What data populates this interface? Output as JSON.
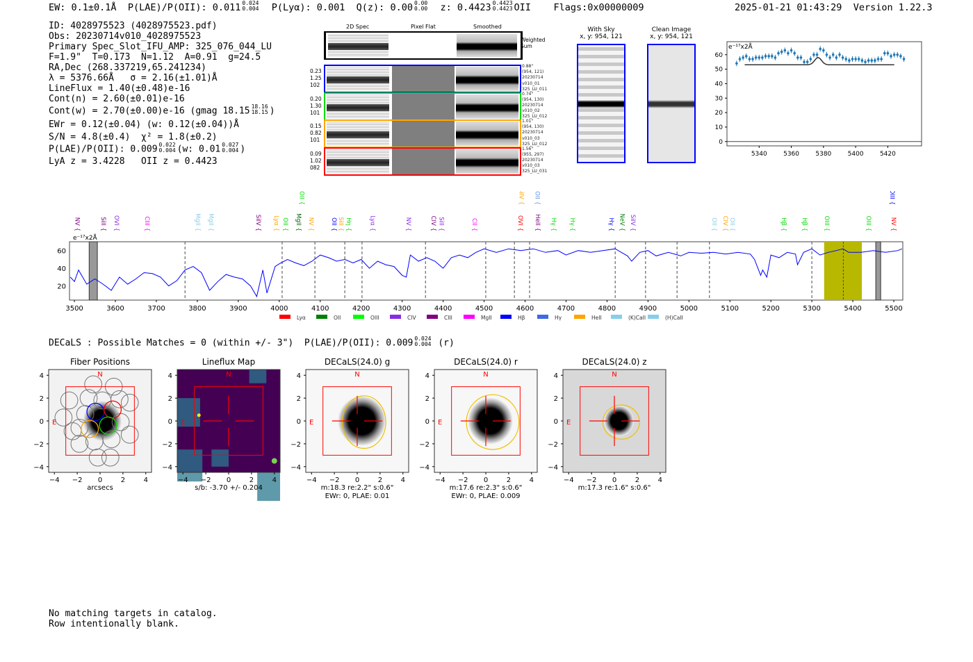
{
  "header": {
    "ew": "EW: 0.1±0.1Å",
    "plae": "P(LAE)/P(OII): 0.011",
    "plae_hi": "0.024",
    "plae_lo": "0.004",
    "plya": "P(Lyα): 0.001",
    "qz": "Q(z): 0.00",
    "qz_hi": "0.00",
    "qz_lo": "0.00",
    "z": "z: 0.4423",
    "z_hi": "0.4423",
    "z_lo": "0.4423",
    "z_line": "OII",
    "flags": "Flags:0x00000009",
    "timestamp": "2025-01-21 01:43:29",
    "version": "Version 1.22.3"
  },
  "info": {
    "id": "ID: 4028975523 (4028975523.pdf)",
    "obs": "Obs: 20230714v010_4028975523",
    "primary": "Primary Spec_Slot_IFU_AMP: 325_076_044_LU",
    "params": "F=1.9\"  T=0.173  N=1.12  A=0.91  g=24.5",
    "radec": "RA,Dec (268.337219,65.241234)",
    "lambda": "λ = 5376.66Å   σ = 2.16(±1.01)Å",
    "lineflux": "LineFlux = 1.40(±0.48)e-16",
    "contn": "Cont(n) = 2.60(±0.01)e-16",
    "contw": "Cont(w) = 2.70(±0.00)e-16 (gmag 18.15",
    "contw_hi": "18.16",
    "contw_lo": "18.15",
    "contw_tail": ")",
    "ewr": "EWr = 0.12(±0.04) (w: 0.12(±0.04))Å",
    "sn": "S/N = 4.8(±0.4)  χ² = 1.8(±0.2)",
    "plae": "P(LAE)/P(OII): 0.009",
    "plae_hi": "0.022",
    "plae_lo": "0.004",
    "plae_w": "(w: 0.01",
    "plae_w_hi": "0.027",
    "plae_w_lo": "0.004",
    "plae_tail": ")",
    "z": "LyA z = 3.4228   OII z = 0.4423"
  },
  "cutouts": {
    "col_2d": "2D Spec",
    "col_flat": "Pixel Flat",
    "col_smooth": "Smoothed",
    "weighted_sum": "Weighted\nSum",
    "rows": [
      {
        "color": "#0000ff",
        "left": [
          "0.23",
          "1.25",
          "102"
        ],
        "right": [
          "0.88\"",
          "(954, 121)",
          "20230714",
          "v010_01",
          "325_LU_011"
        ]
      },
      {
        "color": "#00dd00",
        "left": [
          "0.20",
          "1.30",
          "101"
        ],
        "right": [
          "0.74\"",
          "(954, 130)",
          "20230714",
          "v010_02",
          "325_LU_012"
        ]
      },
      {
        "color": "#ffa500",
        "left": [
          "0.15",
          "0.82",
          "101"
        ],
        "right": [
          "1.01\"",
          "(954, 130)",
          "20230714",
          "v010_03",
          "325_LU_012"
        ]
      },
      {
        "color": "#ff0000",
        "left": [
          "0.09",
          "1.02",
          "082"
        ],
        "right": [
          "1.56\"",
          "(955, 297)",
          "20230714",
          "v010_03",
          "325_LU_031"
        ]
      }
    ]
  },
  "sky": {
    "with_sky_title": "With Sky",
    "with_sky_xy": "x, y: 954, 121",
    "clean_title": "Clean Image",
    "clean_xy": "x, y: 954, 121"
  },
  "chart_data": [
    {
      "type": "scatter",
      "name": "line-fit-inset",
      "ylabel": "e⁻¹⁷x2Å",
      "xlim": [
        5320,
        5441
      ],
      "ylim": [
        -3,
        69
      ],
      "xticks": [
        5340,
        5360,
        5380,
        5400,
        5420
      ],
      "yticks": [
        0,
        10,
        20,
        30,
        40,
        50,
        60
      ],
      "x_start": 5326,
      "x_step": 2,
      "y": [
        54,
        57,
        58,
        59,
        57,
        57,
        58,
        58,
        58,
        59,
        59,
        59,
        58,
        61,
        62,
        63,
        61,
        63,
        61,
        58,
        58,
        55,
        55,
        57,
        60,
        60,
        64,
        63,
        60,
        58,
        60,
        58,
        60,
        58,
        57,
        56,
        57,
        57,
        57,
        56,
        55,
        56,
        56,
        56,
        57,
        57,
        61,
        61,
        59,
        60,
        60,
        59,
        57
      ],
      "model": {
        "center": 5376.66,
        "sigma": 2.16,
        "base": 53,
        "amp": 5,
        "range": [
          5331,
          5424
        ]
      }
    },
    {
      "type": "line",
      "name": "full-spectrum",
      "ylabel": "e⁻¹⁷x2Å",
      "xlim": [
        3488,
        5522
      ],
      "ylim": [
        4,
        70
      ],
      "xticks": [
        3500,
        3600,
        3700,
        3800,
        3900,
        4000,
        4100,
        4200,
        4300,
        4400,
        4500,
        4600,
        4700,
        4800,
        4900,
        5000,
        5100,
        5200,
        5300,
        5400,
        5500
      ],
      "yticks": [
        20,
        40,
        60
      ],
      "x": [
        3490,
        3500,
        3510,
        3530,
        3550,
        3570,
        3590,
        3610,
        3630,
        3650,
        3670,
        3690,
        3710,
        3730,
        3750,
        3770,
        3790,
        3810,
        3830,
        3850,
        3870,
        3890,
        3910,
        3930,
        3945,
        3960,
        3970,
        3990,
        4000,
        4020,
        4040,
        4060,
        4080,
        4100,
        4120,
        4140,
        4160,
        4180,
        4200,
        4220,
        4240,
        4260,
        4280,
        4300,
        4310,
        4320,
        4340,
        4360,
        4380,
        4400,
        4420,
        4440,
        4460,
        4480,
        4500,
        4530,
        4560,
        4590,
        4620,
        4650,
        4680,
        4700,
        4730,
        4760,
        4790,
        4820,
        4850,
        4860,
        4880,
        4900,
        4920,
        4950,
        4980,
        5000,
        5030,
        5060,
        5090,
        5120,
        5150,
        5160,
        5170,
        5175,
        5180,
        5190,
        5200,
        5220,
        5240,
        5260,
        5265,
        5280,
        5300,
        5320,
        5340,
        5360,
        5376,
        5390,
        5420,
        5450,
        5480,
        5510,
        5520
      ],
      "y": [
        30,
        25,
        38,
        22,
        28,
        22,
        15,
        30,
        22,
        28,
        35,
        34,
        30,
        20,
        26,
        38,
        42,
        35,
        15,
        25,
        33,
        30,
        28,
        20,
        8,
        38,
        12,
        42,
        45,
        50,
        46,
        43,
        48,
        55,
        52,
        48,
        50,
        46,
        50,
        40,
        48,
        44,
        42,
        32,
        30,
        55,
        48,
        52,
        48,
        40,
        52,
        55,
        52,
        58,
        62,
        58,
        62,
        60,
        62,
        58,
        60,
        55,
        60,
        58,
        60,
        62,
        54,
        48,
        58,
        60,
        54,
        58,
        54,
        58,
        57,
        58,
        56,
        58,
        56,
        50,
        38,
        32,
        38,
        30,
        55,
        52,
        58,
        56,
        44,
        58,
        62,
        55,
        58,
        60,
        62,
        58,
        58,
        60,
        58,
        60,
        62
      ],
      "dashed_lines": [
        3770,
        4007,
        4087,
        4160,
        4202,
        4357,
        4504,
        4574,
        4611,
        4820,
        4894,
        4971,
        5050,
        5300
      ],
      "highlight": {
        "range": [
          5330,
          5422
        ],
        "center": 5376.66,
        "color": "#b8b800"
      },
      "masked": [
        [
          3536,
          3556
        ],
        [
          5456,
          5468
        ]
      ],
      "lines": [
        {
          "n": "NV",
          "w": 3497,
          "c": "#800080",
          "r": 0
        },
        {
          "n": "SiII",
          "w": 3561,
          "c": "#800080",
          "r": 0
        },
        {
          "n": "OVI",
          "w": 3593,
          "c": "#8a2be2",
          "r": 0
        },
        {
          "n": "CIII",
          "w": 3668,
          "c": "#ff00ff",
          "r": 0
        },
        {
          "n": "MgII",
          "w": 3792,
          "c": "#87ceeb",
          "r": 0
        },
        {
          "n": "MgII",
          "w": 3824,
          "c": "#87ceeb",
          "r": 0
        },
        {
          "n": "SiIV",
          "w": 3939,
          "c": "#800080",
          "r": 0
        },
        {
          "n": "Lyα",
          "w": 3983,
          "c": "#ffa500",
          "r": 0
        },
        {
          "n": "OII",
          "w": 4005,
          "c": "#00dd00",
          "r": 0
        },
        {
          "n": "MgII",
          "w": 4038,
          "c": "#006400",
          "r": 0
        },
        {
          "n": "NV",
          "w": 4068,
          "c": "#ffa500",
          "r": 0
        },
        {
          "n": "OII",
          "w": 4124,
          "c": "#0000ff",
          "r": 0
        },
        {
          "n": "SiII",
          "w": 4141,
          "c": "#ffa500",
          "r": 0
        },
        {
          "n": "Hη",
          "w": 4160,
          "c": "#00dd00",
          "r": 0
        },
        {
          "n": "Lyα",
          "w": 4218,
          "c": "#8a2be2",
          "r": 0
        },
        {
          "n": "NV",
          "w": 4306,
          "c": "#8a2be2",
          "r": 0
        },
        {
          "n": "CIV",
          "w": 4367,
          "c": "#800080",
          "r": 0
        },
        {
          "n": "SiII",
          "w": 4386,
          "c": "#8a2be2",
          "r": 0
        },
        {
          "n": "CII",
          "w": 4467,
          "c": "#ff00ff",
          "r": 0
        },
        {
          "n": "OVI",
          "w": 4579,
          "c": "#ff0000",
          "r": 0
        },
        {
          "n": "HeII",
          "w": 4621,
          "c": "#800080",
          "r": 0
        },
        {
          "n": "Hγ",
          "w": 4660,
          "c": "#00dd00",
          "r": 0
        },
        {
          "n": "Hγ",
          "w": 4706,
          "c": "#00dd00",
          "r": 0
        },
        {
          "n": "Hγ",
          "w": 4801,
          "c": "#0000ff",
          "r": 0
        },
        {
          "n": "NeV",
          "w": 4827,
          "c": "#008000",
          "r": 0
        },
        {
          "n": "SiIV",
          "w": 4854,
          "c": "#8a2be2",
          "r": 0
        },
        {
          "n": "OII",
          "w": 5052,
          "c": "#87ceeb",
          "r": 0
        },
        {
          "n": "CIV",
          "w": 5079,
          "c": "#ffa500",
          "r": 0
        },
        {
          "n": "OII",
          "w": 5096,
          "c": "#87ceeb",
          "r": 0
        },
        {
          "n": "Hβ",
          "w": 5222,
          "c": "#00dd00",
          "r": 0
        },
        {
          "n": "Hβ",
          "w": 5273,
          "c": "#00dd00",
          "r": 0
        },
        {
          "n": "OIII",
          "w": 5327,
          "c": "#00dd00",
          "r": 0
        },
        {
          "n": "OIII",
          "w": 5429,
          "c": "#00dd00",
          "r": 0
        },
        {
          "n": "NV",
          "w": 5490,
          "c": "#ff0000",
          "r": 0
        },
        {
          "n": "OII",
          "w": 4045,
          "c": "#00dd00",
          "r": 1
        },
        {
          "n": "SiIV",
          "w": 4581,
          "c": "#ffa500",
          "r": 1
        },
        {
          "n": "OII",
          "w": 4620,
          "c": "#6495ed",
          "r": 1
        },
        {
          "n": "OIII",
          "w": 5486,
          "c": "#0000ff",
          "r": 1
        }
      ],
      "legend": [
        {
          "n": "Lyα",
          "c": "#ff0000"
        },
        {
          "n": "OII",
          "c": "#008000"
        },
        {
          "n": "OIII",
          "c": "#00ff00"
        },
        {
          "n": "CIV",
          "c": "#8a2be2"
        },
        {
          "n": "CIII",
          "c": "#800080"
        },
        {
          "n": "MgII",
          "c": "#ff00ff"
        },
        {
          "n": "Hβ",
          "c": "#0000ff"
        },
        {
          "n": "Hγ",
          "c": "#4169e1"
        },
        {
          "n": "HeII",
          "c": "#ffa500"
        },
        {
          "n": "(K)CaII",
          "c": "#87ceeb"
        },
        {
          "n": "(H)CaII",
          "c": "#87ceeb"
        }
      ],
      "legend_placement": "bottom"
    }
  ],
  "decals": {
    "summary": "DECaLS : Possible Matches = 0 (within +/- 3\")  P(LAE)/P(OII): 0.009",
    "hi": "0.024",
    "lo": "0.004",
    "band": "(r)"
  },
  "panels": [
    {
      "title": "Fiber Positions",
      "lines": [
        "arcsecs"
      ],
      "kind": "fibers"
    },
    {
      "title": "Lineflux Map",
      "lines": [
        "s/b: -3.70 +/- 0.204"
      ],
      "kind": "flux"
    },
    {
      "title": "DECaLS(24.0) g",
      "lines": [
        "m:18.3  re:2.2\"  s:0.6\"",
        "EWr: 0, PLAE: 0.01"
      ],
      "kind": "g"
    },
    {
      "title": "DECaLS(24.0) r",
      "lines": [
        "m:17.6  re:2.3\"  s:0.6\"",
        "EWr: 0, PLAE: 0.009"
      ],
      "kind": "r"
    },
    {
      "title": "DECaLS(24.0) z",
      "lines": [
        "m:17.3  re:1.6\"  s:0.6\""
      ],
      "kind": "z"
    }
  ],
  "panel_common": {
    "north": "N",
    "east": "E",
    "ticks": [
      "−4",
      "−2",
      "0",
      "2",
      "4"
    ]
  },
  "footer": {
    "line1": "No matching targets in catalog.",
    "line2": "Row intentionally blank."
  }
}
